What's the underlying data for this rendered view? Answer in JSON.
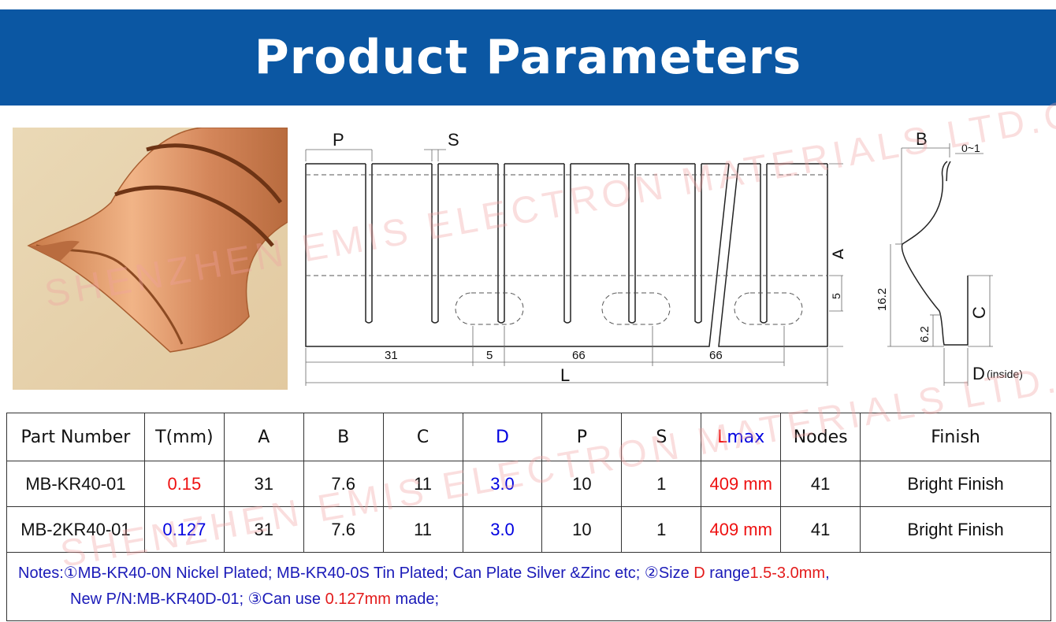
{
  "title": "Product Parameters",
  "watermark": "SHENZHEN EMIS ELECTRON MATERIALS LTD.CO",
  "drawing": {
    "labels": {
      "P": "P",
      "S": "S",
      "A": "A",
      "L": "L",
      "five_side": "5",
      "dim31": "31",
      "dim5": "5",
      "dim66a": "66",
      "dim66b": "66"
    }
  },
  "profile": {
    "labels": {
      "B": "B",
      "gap": "0~1",
      "C": "C",
      "h162": "16.2",
      "h62": "6.2",
      "D": "D",
      "D_note": "(inside)"
    }
  },
  "table": {
    "headers": [
      "Part Number",
      "T(mm)",
      "A",
      "B",
      "C",
      "D",
      "P",
      "S",
      "Lmax",
      "Nodes",
      "Finish"
    ],
    "header_L": "L",
    "header_max": "max",
    "rows": [
      [
        "MB-KR40-01",
        "0.15",
        "31",
        "7.6",
        "11",
        "3.0",
        "10",
        "1",
        "409 mm",
        "41",
        "Bright Finish"
      ],
      [
        "MB-2KR40-01",
        "0.127",
        "31",
        "7.6",
        "11",
        "3.0",
        "10",
        "1",
        "409 mm",
        "41",
        "Bright Finish"
      ]
    ]
  },
  "notes": {
    "p1": "Notes:①MB-KR40-0N Nickel Plated; MB-KR40-0S Tin Plated; Can Plate Silver &Zinc etc; ②Size ",
    "p2": "D",
    "p3": " range",
    "p4": "1.5-3.0mm",
    "p5": ",",
    "p6": "New P/N:MB-KR40D-01; ③Can use ",
    "p7": "0.127mm",
    "p8": " made;"
  },
  "colors": {
    "header_bg": "#0b57a3",
    "blue_text": "#0000e0",
    "red_text": "#ee1111",
    "copper": "#d38a56"
  }
}
